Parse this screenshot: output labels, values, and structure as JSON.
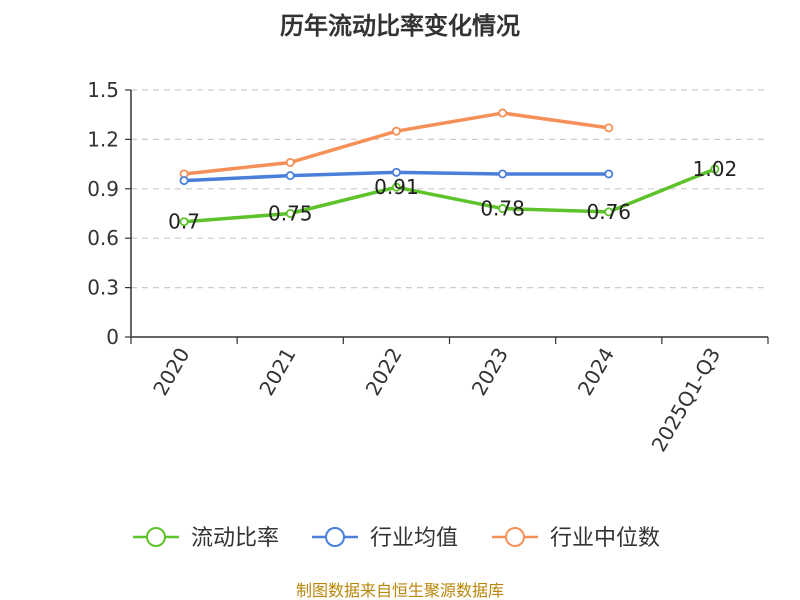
{
  "chart_data": {
    "type": "line",
    "title": "历年流动比率变化情况",
    "categories": [
      "2020",
      "2021",
      "2022",
      "2023",
      "2024",
      "2025Q1-Q3"
    ],
    "ylim": [
      0,
      1.5
    ],
    "yticks": [
      "0",
      "0.3",
      "0.6",
      "0.9",
      "1.2",
      "1.5"
    ],
    "ytick_values": [
      0,
      0.3,
      0.6,
      0.9,
      1.2,
      1.5
    ],
    "grid": true,
    "legend_position": "bottom-center",
    "series": [
      {
        "name": "流动比率",
        "color": "#5ec22a",
        "values": [
          0.7,
          0.75,
          0.91,
          0.78,
          0.76,
          1.02
        ],
        "labels": [
          "0.7",
          "0.75",
          "0.91",
          "0.78",
          "0.76",
          "1.02"
        ]
      },
      {
        "name": "行业均值",
        "color": "#4a7fdc",
        "values": [
          0.95,
          0.98,
          1.0,
          0.99,
          0.99,
          null
        ]
      },
      {
        "name": "行业中位数",
        "color": "#f59058",
        "values": [
          0.99,
          1.06,
          1.25,
          1.36,
          1.27,
          null
        ]
      }
    ]
  },
  "footer": {
    "source": "制图数据来自恒生聚源数据库"
  }
}
